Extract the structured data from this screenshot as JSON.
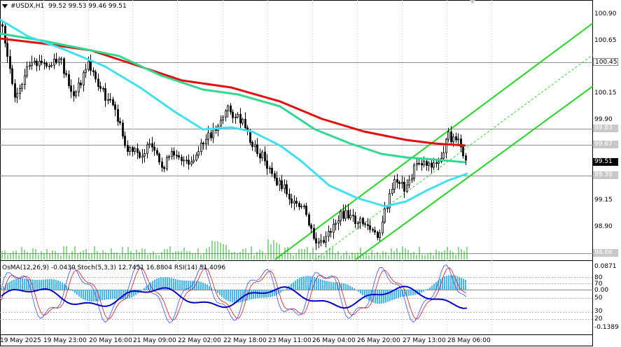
{
  "header": {
    "symbol": "#USDX,H1",
    "ohlc": "99.52 99.53 99.46 99.51"
  },
  "price_axis": [
    "100.90",
    "100.65",
    "100.15",
    "99.90",
    "99.15",
    "98.90"
  ],
  "price_tags": {
    "level_100_45": "100.45",
    "level_99_83": "99.83",
    "level_99_67": "99.67",
    "current": "99.51",
    "level_99_39": "99.39",
    "level_98_66": "98.66"
  },
  "time_axis": [
    "19 May 2025",
    "19 May 23:00",
    "20 May 16:00",
    "21 May 09:00",
    "22 May 02:00",
    "22 May 18:00",
    "23 May 11:00",
    "26 May 04:00",
    "26 May 20:00",
    "27 May 13:00",
    "28 May 06:00"
  ],
  "indicator": {
    "label": "OsMA(12,26,9) -0.0430  Stoch(5,3,3) 12.7451 16.8804  RSI(14) 51.4096",
    "axis": [
      "0.0871",
      "80",
      "70",
      "0.00",
      "50",
      "30",
      "20",
      "-0.1389"
    ]
  },
  "colors": {
    "bg": "#ffffff",
    "candles": "#000000",
    "ma_red": "#e01010",
    "ma_green": "#30d890",
    "ma_cyan": "#40e0f0",
    "channel": "#20d820",
    "osma": "#40b8f0",
    "rsi": "#0000c8",
    "stoch_main": "#3050ff",
    "stoch_signal": "#e01010",
    "grid": "#c8c8c8"
  }
}
